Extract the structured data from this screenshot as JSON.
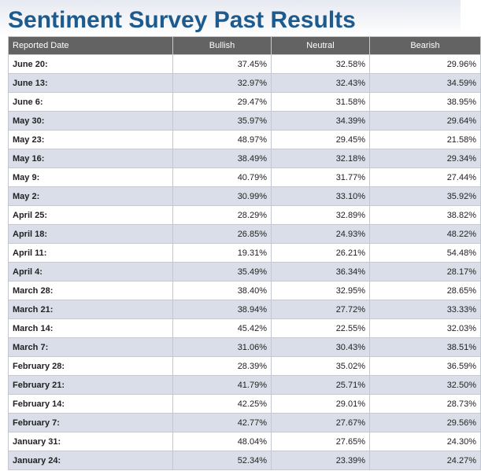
{
  "page": {
    "title": "Sentiment Survey Past Results"
  },
  "table": {
    "headers": [
      "Reported Date",
      "Bullish",
      "Neutral",
      "Bearish"
    ],
    "rows": [
      {
        "date": "June 20:",
        "bullish": "37.45%",
        "neutral": "32.58%",
        "bearish": "29.96%"
      },
      {
        "date": "June 13:",
        "bullish": "32.97%",
        "neutral": "32.43%",
        "bearish": "34.59%"
      },
      {
        "date": "June 6:",
        "bullish": "29.47%",
        "neutral": "31.58%",
        "bearish": "38.95%"
      },
      {
        "date": "May 30:",
        "bullish": "35.97%",
        "neutral": "34.39%",
        "bearish": "29.64%"
      },
      {
        "date": "May 23:",
        "bullish": "48.97%",
        "neutral": "29.45%",
        "bearish": "21.58%"
      },
      {
        "date": "May 16:",
        "bullish": "38.49%",
        "neutral": "32.18%",
        "bearish": "29.34%"
      },
      {
        "date": "May 9:",
        "bullish": "40.79%",
        "neutral": "31.77%",
        "bearish": "27.44%"
      },
      {
        "date": "May 2:",
        "bullish": "30.99%",
        "neutral": "33.10%",
        "bearish": "35.92%"
      },
      {
        "date": "April 25:",
        "bullish": "28.29%",
        "neutral": "32.89%",
        "bearish": "38.82%"
      },
      {
        "date": "April 18:",
        "bullish": "26.85%",
        "neutral": "24.93%",
        "bearish": "48.22%"
      },
      {
        "date": "April 11:",
        "bullish": "19.31%",
        "neutral": "26.21%",
        "bearish": "54.48%"
      },
      {
        "date": "April 4:",
        "bullish": "35.49%",
        "neutral": "36.34%",
        "bearish": "28.17%"
      },
      {
        "date": "March 28:",
        "bullish": "38.40%",
        "neutral": "32.95%",
        "bearish": "28.65%"
      },
      {
        "date": "March 21:",
        "bullish": "38.94%",
        "neutral": "27.72%",
        "bearish": "33.33%"
      },
      {
        "date": "March 14:",
        "bullish": "45.42%",
        "neutral": "22.55%",
        "bearish": "32.03%"
      },
      {
        "date": "March 7:",
        "bullish": "31.06%",
        "neutral": "30.43%",
        "bearish": "38.51%"
      },
      {
        "date": "February 28:",
        "bullish": "28.39%",
        "neutral": "35.02%",
        "bearish": "36.59%"
      },
      {
        "date": "February 21:",
        "bullish": "41.79%",
        "neutral": "25.71%",
        "bearish": "32.50%"
      },
      {
        "date": "February 14:",
        "bullish": "42.25%",
        "neutral": "29.01%",
        "bearish": "28.73%"
      },
      {
        "date": "February 7:",
        "bullish": "42.77%",
        "neutral": "27.67%",
        "bearish": "29.56%"
      },
      {
        "date": "January 31:",
        "bullish": "48.04%",
        "neutral": "27.65%",
        "bearish": "24.30%"
      },
      {
        "date": "January 24:",
        "bullish": "52.34%",
        "neutral": "23.39%",
        "bearish": "24.27%"
      }
    ]
  },
  "colors": {
    "title": "#1d5a8e",
    "header_bg": "#636363",
    "header_text": "#ffffff",
    "row_alt_bg": "#d9dee9",
    "row_bg": "#ffffff"
  }
}
